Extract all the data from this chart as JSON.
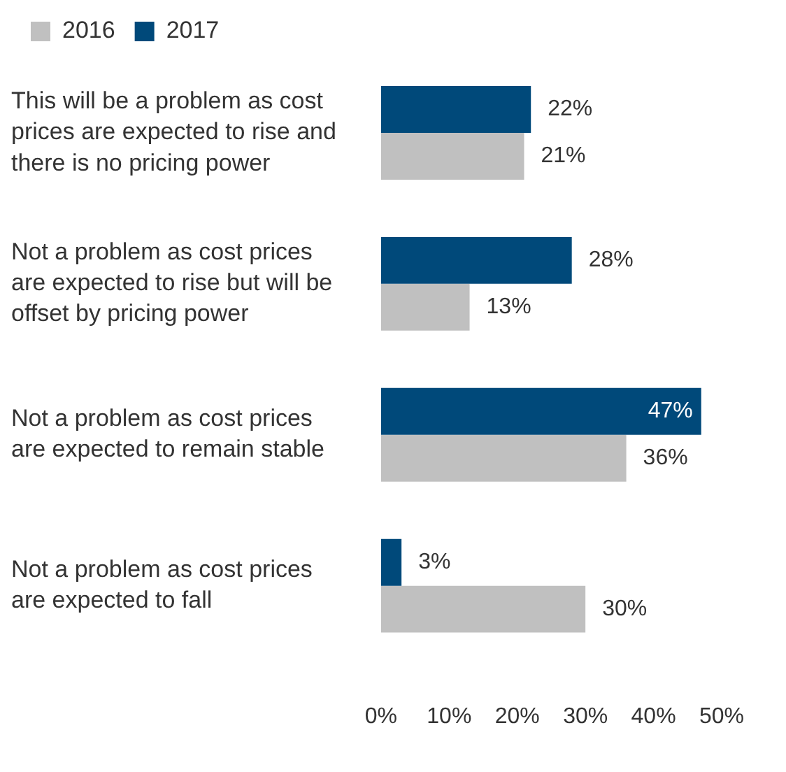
{
  "chart_data": {
    "type": "bar",
    "orientation": "horizontal",
    "legend": "top left",
    "categories": [
      "This will be a problem as cost prices are expected to rise and there is no pricing power",
      "Not a problem as cost prices are expected to rise but will be offset by pricing power",
      "Not a problem as cost prices are expected to remain stable",
      "Not a problem as cost prices are expected to fall"
    ],
    "series": [
      {
        "name": "2016",
        "color": "#c0c0c0",
        "values": [
          21,
          13,
          36,
          30
        ],
        "value_labels": [
          "21%",
          "13%",
          "36%",
          "30%"
        ]
      },
      {
        "name": "2017",
        "color": "#00497a",
        "values": [
          22,
          28,
          47,
          3
        ],
        "value_labels": [
          "22%",
          "28%",
          "47%",
          "3%"
        ]
      }
    ],
    "xlim": [
      0,
      50
    ],
    "xticks": [
      {
        "value": 0,
        "label": "0%"
      },
      {
        "value": 10,
        "label": "10%"
      },
      {
        "value": 20,
        "label": "20%"
      },
      {
        "value": 30,
        "label": "30%"
      },
      {
        "value": 40,
        "label": "40%"
      },
      {
        "value": 50,
        "label": "50%"
      }
    ],
    "grid": false
  }
}
